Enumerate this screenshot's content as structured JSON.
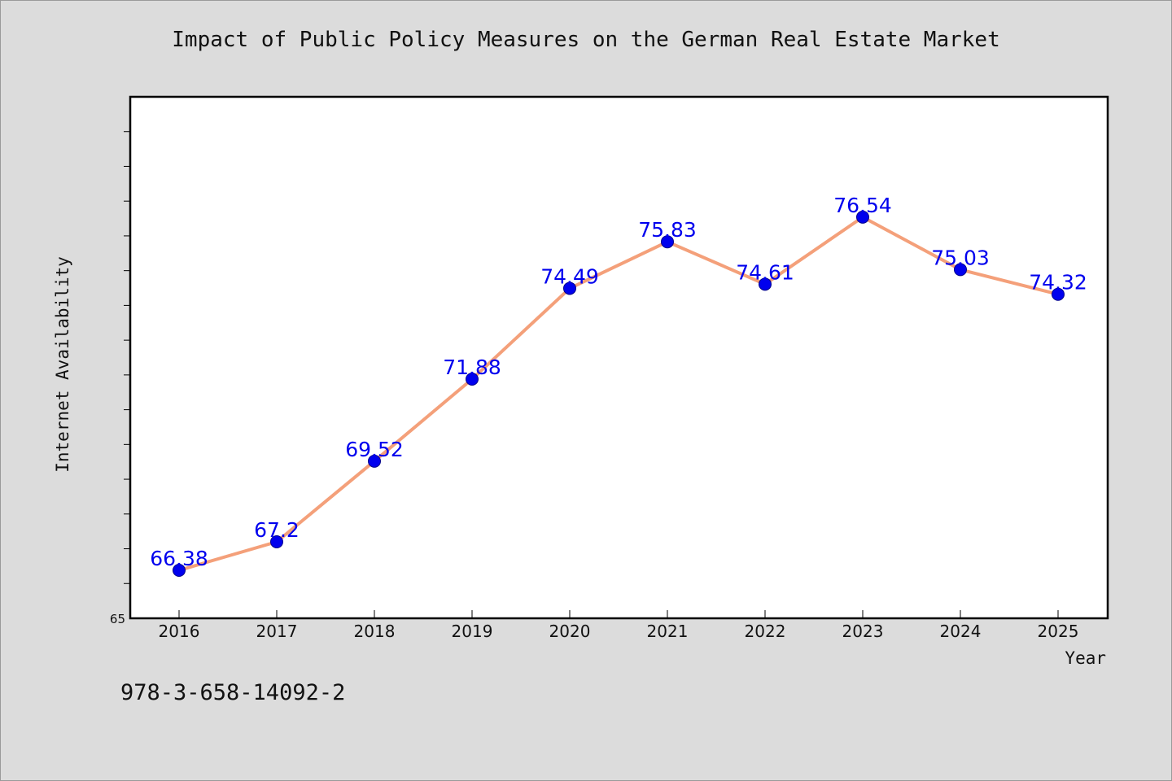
{
  "chart_data": {
    "type": "line",
    "title": "Impact of Public Policy Measures on the German Real Estate Market",
    "xlabel": "Year",
    "ylabel": "Internet Availability",
    "categories": [
      "2016",
      "2017",
      "2018",
      "2019",
      "2020",
      "2021",
      "2022",
      "2023",
      "2024",
      "2025"
    ],
    "values": [
      66.38,
      67.2,
      69.52,
      71.88,
      74.49,
      75.83,
      74.61,
      76.54,
      75.03,
      74.32
    ],
    "data_labels": [
      "66.38",
      "67.2",
      "69.52",
      "71.88",
      "74.49",
      "75.83",
      "74.61",
      "76.54",
      "75.03",
      "74.32"
    ],
    "ylim": [
      65,
      80
    ],
    "y_tick_labels": [
      "65"
    ],
    "grid": false,
    "line_color": "#f4a07a",
    "marker_color": "#0000ee",
    "label_color": "#0000ee"
  },
  "footer": {
    "isbn": "978-3-658-14092-2"
  }
}
